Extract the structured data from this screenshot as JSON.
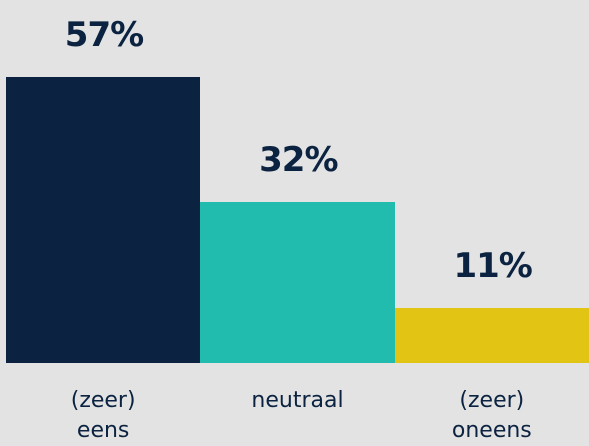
{
  "chart_data": {
    "type": "bar",
    "categories": [
      "(zeer) eens",
      "neutraal",
      "(zeer) oneens"
    ],
    "values": [
      57,
      32,
      11
    ],
    "value_labels": [
      "57%",
      "32%",
      "11%"
    ],
    "colors": [
      "#0b2340",
      "#21bcae",
      "#e2c514"
    ]
  }
}
